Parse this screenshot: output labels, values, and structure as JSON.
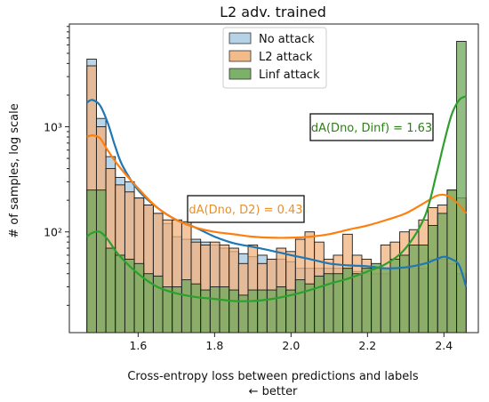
{
  "chart_data": {
    "type": "histogram",
    "title": "L2 adv. trained",
    "xlabel": "Cross-entropy loss between predictions and labels",
    "xlabel_note": "← better",
    "ylabel": "# of samples, log scale",
    "y_scale": "log",
    "xlim": [
      1.42,
      2.49
    ],
    "ylim": [
      11,
      9500
    ],
    "x_ticks": [
      "1.6",
      "1.8",
      "2.0",
      "2.2",
      "2.4"
    ],
    "x_tick_values": [
      1.6,
      1.8,
      2.0,
      2.2,
      2.4
    ],
    "y_ticks": [
      "10³",
      "10²"
    ],
    "y_tick_values": [
      1000,
      100
    ],
    "bin_edges": [
      1.466,
      1.4908,
      1.5156,
      1.5404,
      1.5652,
      1.59,
      1.6148,
      1.6396,
      1.6644,
      1.6892,
      1.714,
      1.7388,
      1.7636,
      1.7884,
      1.8132,
      1.838,
      1.8628,
      1.8876,
      1.9124,
      1.9372,
      1.962,
      1.9868,
      2.0116,
      2.0364,
      2.0612,
      2.086,
      2.1108,
      2.1356,
      2.1604,
      2.1852,
      2.21,
      2.2348,
      2.2596,
      2.2844,
      2.3092,
      2.334,
      2.3588,
      2.3836,
      2.4084,
      2.4332,
      2.458
    ],
    "series": [
      {
        "name": "No attack",
        "color": "#1f77b4",
        "counts": [
          4400,
          1200,
          520,
          330,
          300,
          210,
          180,
          150,
          120,
          90,
          85,
          85,
          80,
          75,
          70,
          65,
          62,
          58,
          60,
          55,
          55,
          52,
          45,
          45,
          45,
          45,
          45,
          45,
          42,
          40,
          40,
          40,
          45,
          45,
          45,
          45,
          55,
          55,
          50,
          40
        ]
      },
      {
        "name": "L2 attack",
        "color": "#ff7f0e",
        "counts": [
          3800,
          1000,
          400,
          280,
          240,
          210,
          180,
          150,
          130,
          130,
          125,
          80,
          75,
          80,
          75,
          70,
          50,
          75,
          50,
          55,
          70,
          65,
          85,
          100,
          80,
          55,
          60,
          95,
          60,
          55,
          45,
          75,
          80,
          100,
          105,
          130,
          170,
          180,
          250,
          210
        ]
      },
      {
        "name": "Linf attack",
        "color": "#2ca02c",
        "counts": [
          250,
          250,
          70,
          60,
          55,
          50,
          40,
          38,
          30,
          30,
          35,
          32,
          28,
          30,
          30,
          28,
          25,
          28,
          28,
          28,
          30,
          28,
          35,
          32,
          38,
          40,
          40,
          45,
          40,
          45,
          50,
          45,
          55,
          60,
          75,
          75,
          115,
          150,
          250,
          6500
        ]
      }
    ],
    "kde": [
      {
        "series": "No attack",
        "x": [
          1.466,
          1.48,
          1.5,
          1.52,
          1.54,
          1.56,
          1.6,
          1.65,
          1.7,
          1.75,
          1.8,
          1.85,
          1.9,
          1.95,
          2.0,
          2.05,
          2.1,
          2.15,
          2.2,
          2.25,
          2.3,
          2.35,
          2.38,
          2.4,
          2.42,
          2.44,
          2.458
        ],
        "y": [
          1700,
          1800,
          1600,
          1100,
          650,
          420,
          250,
          170,
          130,
          110,
          90,
          78,
          72,
          66,
          60,
          55,
          50,
          48,
          47,
          45,
          46,
          50,
          55,
          58,
          55,
          48,
          30
        ]
      },
      {
        "series": "L2 attack",
        "x": [
          1.466,
          1.48,
          1.5,
          1.52,
          1.55,
          1.6,
          1.65,
          1.7,
          1.75,
          1.8,
          1.85,
          1.9,
          1.95,
          2.0,
          2.05,
          2.1,
          2.15,
          2.2,
          2.25,
          2.3,
          2.35,
          2.38,
          2.4,
          2.42,
          2.44,
          2.458
        ],
        "y": [
          800,
          830,
          780,
          600,
          420,
          260,
          170,
          130,
          110,
          100,
          95,
          90,
          88,
          88,
          90,
          95,
          105,
          115,
          130,
          150,
          190,
          220,
          225,
          210,
          180,
          150
        ]
      },
      {
        "series": "Linf attack",
        "x": [
          1.466,
          1.48,
          1.5,
          1.52,
          1.55,
          1.6,
          1.65,
          1.7,
          1.75,
          1.8,
          1.85,
          1.9,
          1.95,
          2.0,
          2.05,
          2.1,
          2.15,
          2.2,
          2.25,
          2.3,
          2.35,
          2.38,
          2.4,
          2.42,
          2.44,
          2.458
        ],
        "y": [
          90,
          98,
          100,
          85,
          60,
          40,
          30,
          26,
          24,
          23,
          22,
          22,
          23,
          25,
          28,
          32,
          36,
          42,
          50,
          70,
          140,
          350,
          700,
          1300,
          1800,
          1950
        ]
      }
    ],
    "legend": {
      "position": "top-center",
      "entries": [
        "No attack",
        "L2 attack",
        "Linf attack"
      ]
    },
    "annotations": [
      {
        "text": "dA(Dno, Dinf) = 1.63",
        "color": "#2e7d1a"
      },
      {
        "text": "dA(Dno, D2) = 0.43",
        "color": "#e8902a"
      }
    ]
  }
}
